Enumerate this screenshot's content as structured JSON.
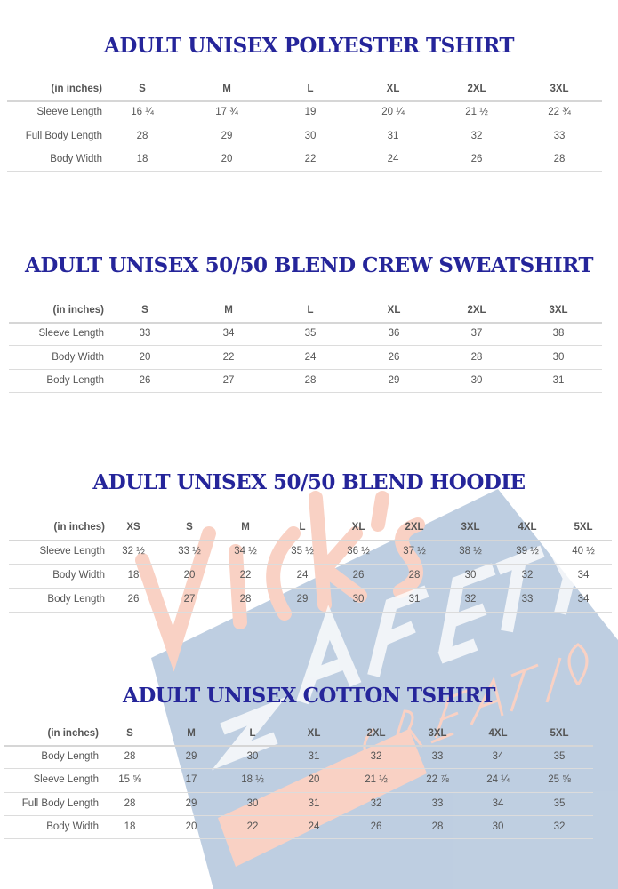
{
  "watermark": {
    "text": [
      "Vicki's",
      "SAFETY",
      "CREATIONS"
    ],
    "colors": {
      "orange": "#f4a58a",
      "blue": "#7f9fc4"
    }
  },
  "title_color": "#25259a",
  "tables": [
    {
      "title": "ADULT UNISEX POLYESTER TSHIRT",
      "unit_label": "(in inches)",
      "sizes": [
        "S",
        "M",
        "L",
        "XL",
        "2XL",
        "3XL"
      ],
      "rows": [
        {
          "label": "Sleeve Length",
          "values": [
            "16 ¼",
            "17 ¾",
            "19",
            "20 ¼",
            "21 ½",
            "22 ¾"
          ]
        },
        {
          "label": "Full Body Length",
          "values": [
            "28",
            "29",
            "30",
            "31",
            "32",
            "33"
          ]
        },
        {
          "label": "Body Width",
          "values": [
            "18",
            "20",
            "22",
            "24",
            "26",
            "28"
          ]
        }
      ]
    },
    {
      "title": "ADULT  UNISEX 50/50 BLEND CREW SWEATSHIRT",
      "unit_label": "(in inches)",
      "sizes": [
        "S",
        "M",
        "L",
        "XL",
        "2XL",
        "3XL"
      ],
      "rows": [
        {
          "label": "Sleeve Length",
          "values": [
            "33",
            "34",
            "35",
            "36",
            "37",
            "38"
          ]
        },
        {
          "label": "Body Width",
          "values": [
            "20",
            "22",
            "24",
            "26",
            "28",
            "30"
          ]
        },
        {
          "label": "Body Length",
          "values": [
            "26",
            "27",
            "28",
            "29",
            "30",
            "31"
          ]
        }
      ]
    },
    {
      "title": "ADULT  UNISEX 50/50 BLEND HOODIE",
      "unit_label": "(in inches)",
      "sizes": [
        "XS",
        "S",
        "M",
        "L",
        "XL",
        "2XL",
        "3XL",
        "4XL",
        "5XL"
      ],
      "rows": [
        {
          "label": "Sleeve Length",
          "values": [
            "32 ½",
            "33 ½",
            "34 ½",
            "35 ½",
            "36 ½",
            "37 ½",
            "38 ½",
            "39 ½",
            "40 ½"
          ]
        },
        {
          "label": "Body Width",
          "values": [
            "18",
            "20",
            "22",
            "24",
            "26",
            "28",
            "30",
            "32",
            "34"
          ]
        },
        {
          "label": "Body Length",
          "values": [
            "26",
            "27",
            "28",
            "29",
            "30",
            "31",
            "32",
            "33",
            "34"
          ]
        }
      ]
    },
    {
      "title": "ADULT  UNISEX COTTON TSHIRT",
      "unit_label": "(in inches)",
      "sizes": [
        "S",
        "M",
        "L",
        "XL",
        "2XL",
        "3XL",
        "4XL",
        "5XL"
      ],
      "rows": [
        {
          "label": "Body Length",
          "values": [
            "28",
            "29",
            "30",
            "31",
            "32",
            "33",
            "34",
            "35"
          ]
        },
        {
          "label": "Sleeve Length",
          "values": [
            "15 ⅝",
            "17",
            "18 ½",
            "20",
            "21 ½",
            "22 ⅞",
            "24 ¼",
            "25 ⅝"
          ]
        },
        {
          "label": "Full Body Length",
          "values": [
            "28",
            "29",
            "30",
            "31",
            "32",
            "33",
            "34",
            "35"
          ]
        },
        {
          "label": "Body Width",
          "values": [
            "18",
            "20",
            "22",
            "24",
            "26",
            "28",
            "30",
            "32"
          ]
        }
      ]
    }
  ]
}
